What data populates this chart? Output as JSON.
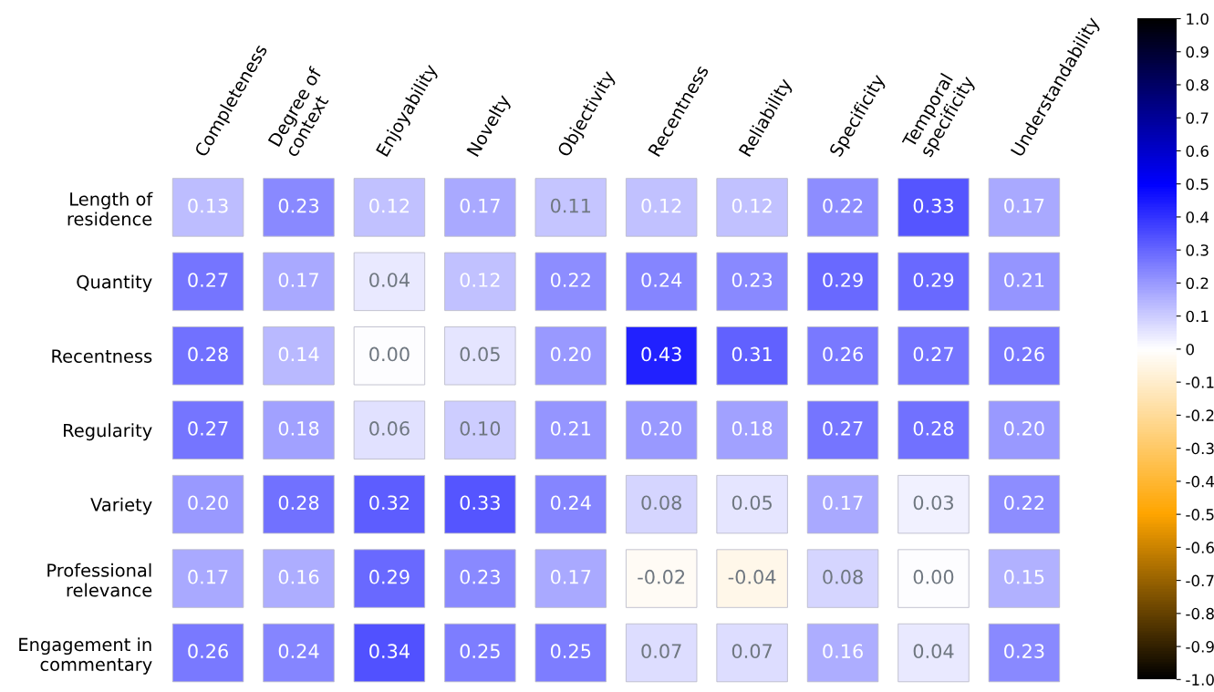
{
  "chart_data": {
    "type": "heatmap",
    "categories": [
      "Completeness",
      "Degree of\ncontext",
      "Enjoyability",
      "Novelty",
      "Objectivity",
      "Recentness",
      "Reliability",
      "Specificity",
      "Temporal\nspecificity",
      "Understandability"
    ],
    "y_categories": [
      "Length of\nresidence",
      "Quantity",
      "Recentness",
      "Regularity",
      "Variety",
      "Professional\nrelevance",
      "Engagement in\ncommentary"
    ],
    "cells": [
      [
        0.13,
        0.23,
        0.12,
        0.17,
        0.11,
        0.12,
        0.12,
        0.22,
        0.33,
        0.17
      ],
      [
        0.27,
        0.17,
        0.04,
        0.12,
        0.22,
        0.24,
        0.23,
        0.29,
        0.29,
        0.21
      ],
      [
        0.28,
        0.14,
        0.0,
        0.05,
        0.2,
        0.43,
        0.31,
        0.26,
        0.27,
        0.26
      ],
      [
        0.27,
        0.18,
        0.06,
        0.1,
        0.21,
        0.2,
        0.18,
        0.27,
        0.28,
        0.2
      ],
      [
        0.2,
        0.28,
        0.32,
        0.33,
        0.24,
        0.08,
        0.05,
        0.17,
        0.03,
        0.22
      ],
      [
        0.17,
        0.16,
        0.29,
        0.23,
        0.17,
        -0.02,
        -0.04,
        0.08,
        0.0,
        0.15
      ],
      [
        0.26,
        0.24,
        0.34,
        0.25,
        0.25,
        0.07,
        0.07,
        0.16,
        0.04,
        0.23
      ]
    ],
    "cell_labels": [
      [
        "0.13",
        "0.23",
        "0.12",
        "0.17",
        "0.11",
        "0.12",
        "0.12",
        "0.22",
        "0.33",
        "0.17"
      ],
      [
        "0.27",
        "0.17",
        "0.04",
        "0.12",
        "0.22",
        "0.24",
        "0.23",
        "0.29",
        "0.29",
        "0.21"
      ],
      [
        "0.28",
        "0.14",
        "0.00",
        "0.05",
        "0.20",
        "0.43",
        "0.31",
        "0.26",
        "0.27",
        "0.26"
      ],
      [
        "0.27",
        "0.18",
        "0.06",
        "0.10",
        "0.21",
        "0.20",
        "0.18",
        "0.27",
        "0.28",
        "0.20"
      ],
      [
        "0.20",
        "0.28",
        "0.32",
        "0.33",
        "0.24",
        "0.08",
        "0.05",
        "0.17",
        "0.03",
        "0.22"
      ],
      [
        "0.17",
        "0.16",
        "0.29",
        "0.23",
        "0.17",
        "-0.02",
        "-0.04",
        "0.08",
        "0.00",
        "0.15"
      ],
      [
        "0.26",
        "0.24",
        "0.34",
        "0.25",
        "0.25",
        "0.07",
        "0.07",
        "0.16",
        "0.04",
        "0.23"
      ]
    ],
    "clim": [
      -1.0,
      1.0
    ],
    "cticks": [
      {
        "value": -1.0,
        "label": "-1.0"
      },
      -0.9,
      -0.8,
      -0.7,
      -0.6,
      -0.5,
      -0.4,
      -0.3,
      -0.2,
      -0.1,
      0,
      0.1,
      0.2,
      0.3,
      0.4,
      0.5,
      0.6,
      0.7,
      0.8,
      0.9,
      {
        "value": 1.0,
        "label": "1.0"
      }
    ]
  }
}
